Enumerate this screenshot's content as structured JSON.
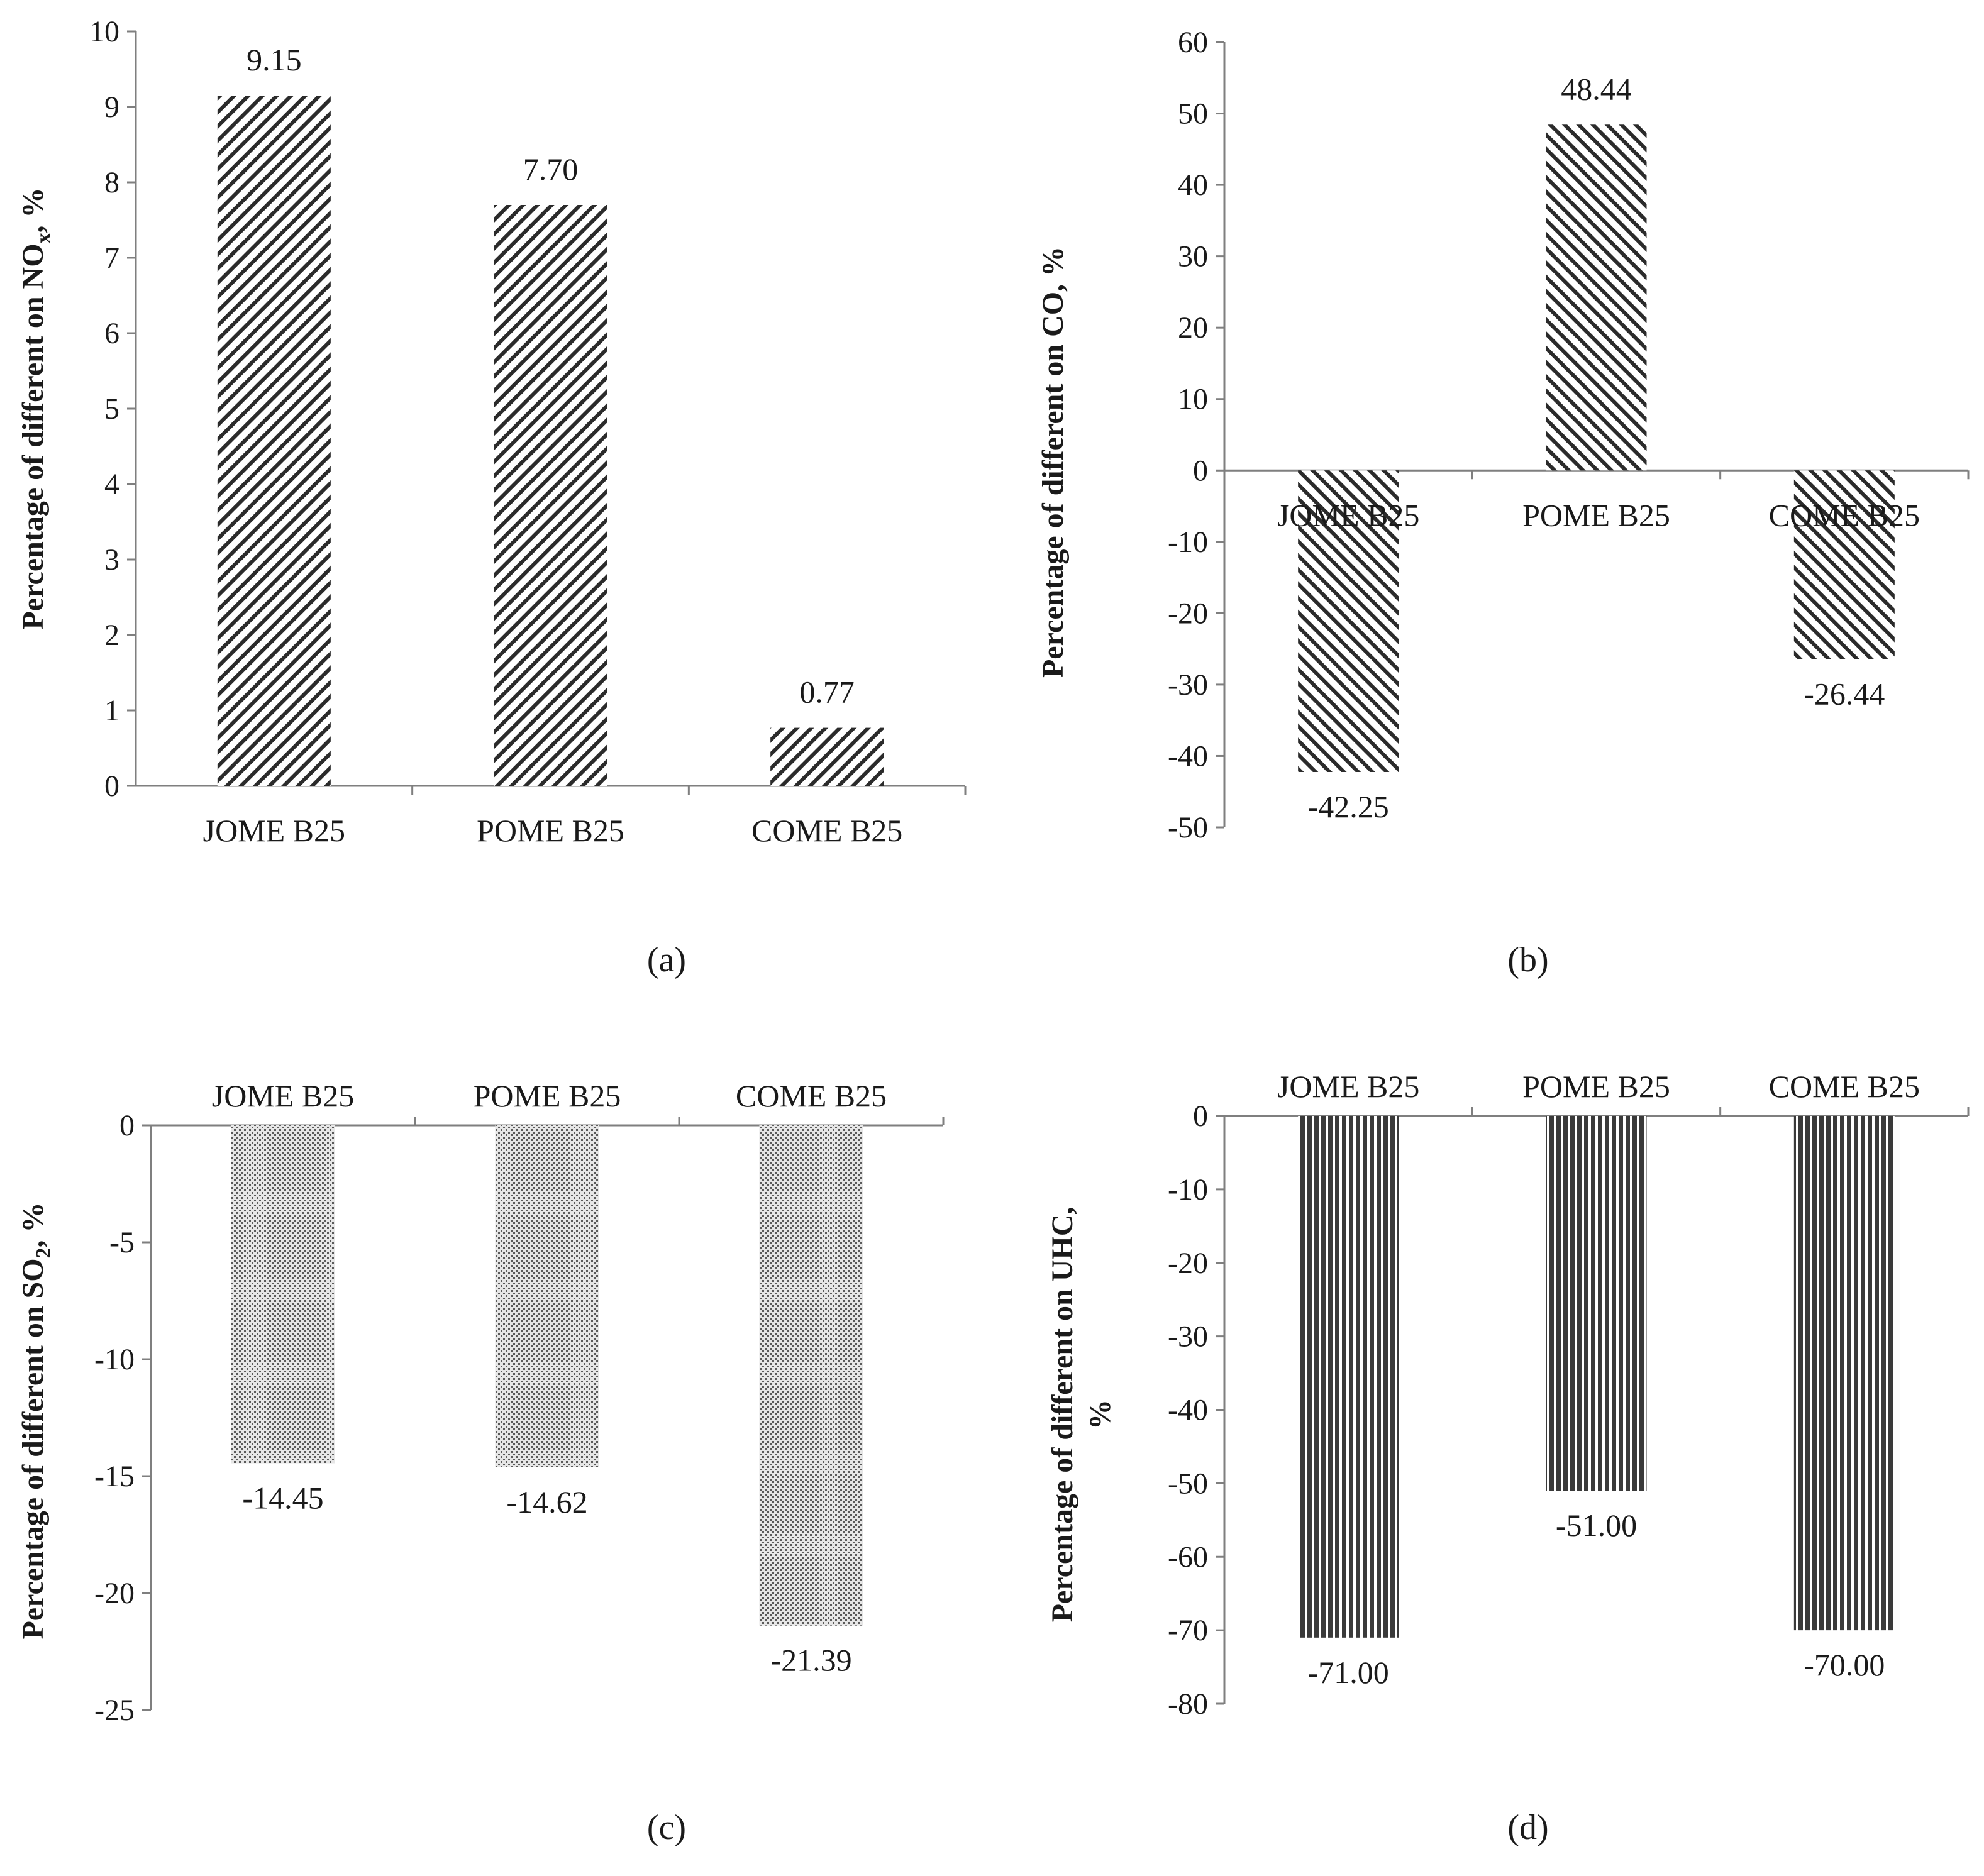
{
  "chart_data": [
    {
      "id": "a",
      "type": "bar",
      "panel_label": "(a)",
      "categories": [
        "JOME B25",
        "POME B25",
        "COME B25"
      ],
      "values": [
        9.15,
        7.7,
        0.77
      ],
      "value_labels": [
        "9.15",
        "7.70",
        "0.77"
      ],
      "ylabel": {
        "main": "Percentage of different on NO",
        "sub": "x",
        "tail": ", %"
      },
      "ylim": [
        0,
        10
      ],
      "ytick_step": 1,
      "category_axis_position": "bottom",
      "pattern": "diag-back",
      "grid": false
    },
    {
      "id": "b",
      "type": "bar",
      "panel_label": "(b)",
      "categories": [
        "JOME B25",
        "POME B25",
        "COME B25"
      ],
      "values": [
        -42.25,
        48.44,
        -26.44
      ],
      "value_labels": [
        "-42.25",
        "48.44",
        "-26.44"
      ],
      "ylabel": {
        "main": "Percentage of different on CO, %",
        "sub": "",
        "tail": ""
      },
      "ylim": [
        -50,
        60
      ],
      "ytick_step": 10,
      "category_axis_position": "zero-line",
      "pattern": "diag-fwd",
      "grid": false
    },
    {
      "id": "c",
      "type": "bar",
      "panel_label": "(c)",
      "categories": [
        "JOME B25",
        "POME B25",
        "COME B25"
      ],
      "values": [
        -14.45,
        -14.62,
        -21.39
      ],
      "value_labels": [
        "-14.45",
        "-14.62",
        "-21.39"
      ],
      "ylabel": {
        "main": "Percentage of different on SO",
        "sub": "2",
        "tail": ", %"
      },
      "ylim": [
        -25,
        0
      ],
      "ytick_step": 5,
      "category_axis_position": "top",
      "pattern": "dots",
      "grid": false
    },
    {
      "id": "d",
      "type": "bar",
      "panel_label": "(d)",
      "categories": [
        "JOME B25",
        "POME B25",
        "COME B25"
      ],
      "values": [
        -71.0,
        -51.0,
        -70.0
      ],
      "value_labels": [
        "-71.00",
        "-51.00",
        "-70.00"
      ],
      "ylabel": {
        "main": "Percentage of different on UHC,",
        "sub": "",
        "tail": "",
        "line2": "%"
      },
      "ylim": [
        -80,
        0
      ],
      "ytick_step": 10,
      "category_axis_position": "top",
      "pattern": "vlines",
      "grid": false
    }
  ]
}
